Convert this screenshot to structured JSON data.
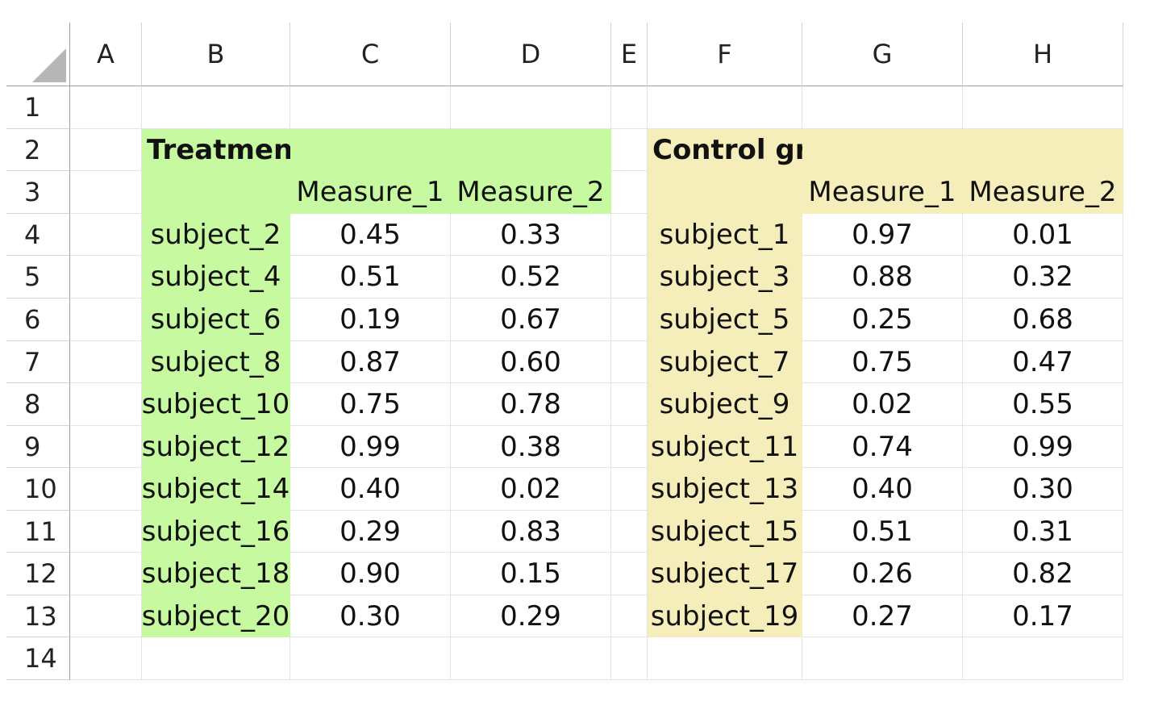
{
  "columns": [
    "A",
    "B",
    "C",
    "D",
    "E",
    "F",
    "G",
    "H"
  ],
  "rows": [
    "1",
    "2",
    "3",
    "4",
    "5",
    "6",
    "7",
    "8",
    "9",
    "10",
    "11",
    "12",
    "13",
    "14"
  ],
  "treatment": {
    "title": "Treatment group",
    "headers": [
      "Measure_1",
      "Measure_2"
    ],
    "subjects": [
      [
        "subject_2",
        "0.45",
        "0.33"
      ],
      [
        "subject_4",
        "0.51",
        "0.52"
      ],
      [
        "subject_6",
        "0.19",
        "0.67"
      ],
      [
        "subject_8",
        "0.87",
        "0.60"
      ],
      [
        "subject_10",
        "0.75",
        "0.78"
      ],
      [
        "subject_12",
        "0.99",
        "0.38"
      ],
      [
        "subject_14",
        "0.40",
        "0.02"
      ],
      [
        "subject_16",
        "0.29",
        "0.83"
      ],
      [
        "subject_18",
        "0.90",
        "0.15"
      ],
      [
        "subject_20",
        "0.30",
        "0.29"
      ]
    ]
  },
  "control": {
    "title": "Control group",
    "headers": [
      "Measure_1",
      "Measure_2"
    ],
    "subjects": [
      [
        "subject_1",
        "0.97",
        "0.01"
      ],
      [
        "subject_3",
        "0.88",
        "0.32"
      ],
      [
        "subject_5",
        "0.25",
        "0.68"
      ],
      [
        "subject_7",
        "0.75",
        "0.47"
      ],
      [
        "subject_9",
        "0.02",
        "0.55"
      ],
      [
        "subject_11",
        "0.74",
        "0.99"
      ],
      [
        "subject_13",
        "0.40",
        "0.30"
      ],
      [
        "subject_15",
        "0.51",
        "0.31"
      ],
      [
        "subject_17",
        "0.26",
        "0.82"
      ],
      [
        "subject_19",
        "0.27",
        "0.17"
      ]
    ]
  },
  "colors": {
    "treatment_fill": "#c7f9a0",
    "control_fill": "#f6eeba"
  }
}
